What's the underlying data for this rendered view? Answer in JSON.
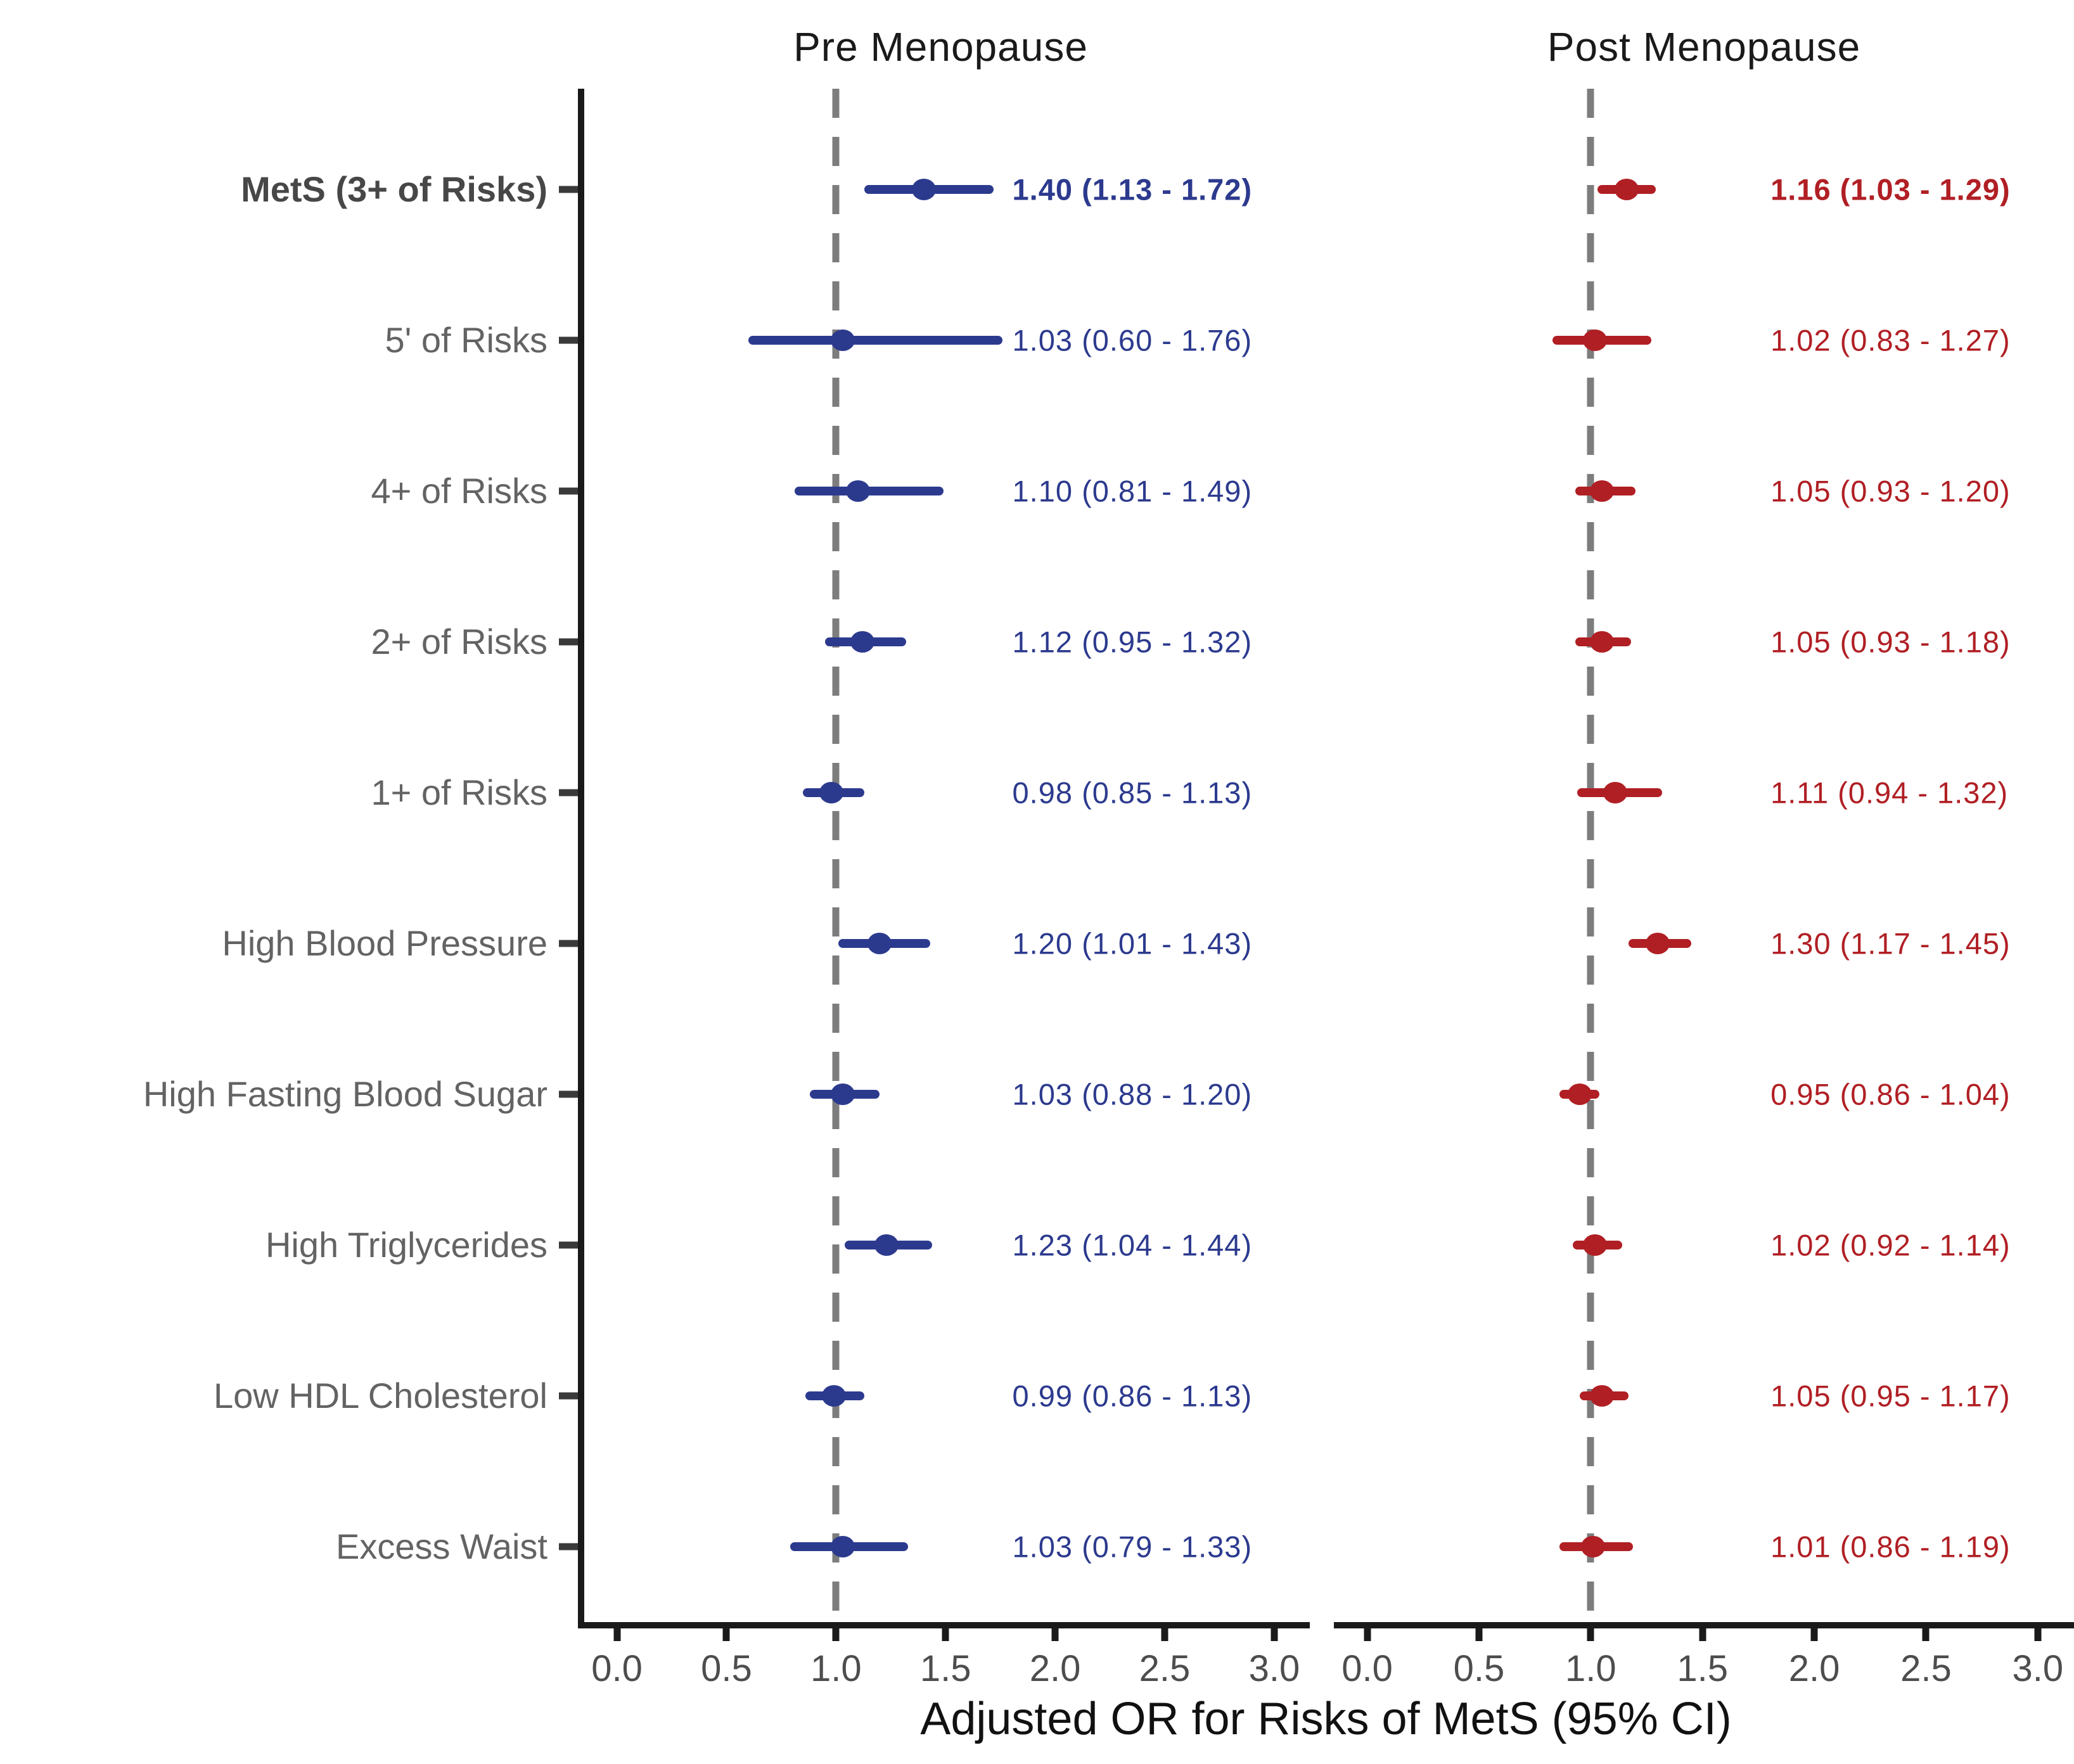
{
  "figure": {
    "x_axis_title": "Adjusted OR for Risks of MetS (95% CI)"
  },
  "chart_data": {
    "type": "forest",
    "orientation": "horizontal",
    "categories": [
      "MetS (3+ of Risks)",
      "5' of Risks",
      "4+ of Risks",
      "2+ of Risks",
      "1+ of Risks",
      "High Blood Pressure",
      "High Fasting Blood Sugar",
      "High Triglycerides",
      "Low HDL Cholesterol",
      "Excess Waist"
    ],
    "bold_rows": [
      0
    ],
    "x_ticks": [
      0.0,
      0.5,
      1.0,
      1.5,
      2.0,
      2.5,
      3.0
    ],
    "x_tick_labels": [
      "0.0",
      "0.5",
      "1.0",
      "1.5",
      "2.0",
      "2.5",
      "3.0"
    ],
    "xlim": [
      -0.15,
      3.15
    ],
    "reference_line": 1.0,
    "grid": false,
    "series": [
      {
        "name": "Pre Menopause",
        "color": "#2c3a8e",
        "values": [
          {
            "or": 1.4,
            "lo": 1.13,
            "hi": 1.72,
            "label": "1.40 (1.13 - 1.72)"
          },
          {
            "or": 1.03,
            "lo": 0.6,
            "hi": 1.76,
            "label": "1.03 (0.60 - 1.76)"
          },
          {
            "or": 1.1,
            "lo": 0.81,
            "hi": 1.49,
            "label": "1.10 (0.81 - 1.49)"
          },
          {
            "or": 1.12,
            "lo": 0.95,
            "hi": 1.32,
            "label": "1.12 (0.95 - 1.32)"
          },
          {
            "or": 0.98,
            "lo": 0.85,
            "hi": 1.13,
            "label": "0.98 (0.85 - 1.13)"
          },
          {
            "or": 1.2,
            "lo": 1.01,
            "hi": 1.43,
            "label": "1.20 (1.01 - 1.43)"
          },
          {
            "or": 1.03,
            "lo": 0.88,
            "hi": 1.2,
            "label": "1.03 (0.88 - 1.20)"
          },
          {
            "or": 1.23,
            "lo": 1.04,
            "hi": 1.44,
            "label": "1.23 (1.04 - 1.44)"
          },
          {
            "or": 0.99,
            "lo": 0.86,
            "hi": 1.13,
            "label": "0.99 (0.86 - 1.13)"
          },
          {
            "or": 1.03,
            "lo": 0.79,
            "hi": 1.33,
            "label": "1.03 (0.79 - 1.33)"
          }
        ]
      },
      {
        "name": "Post Menopause",
        "color": "#b01f24",
        "values": [
          {
            "or": 1.16,
            "lo": 1.03,
            "hi": 1.29,
            "label": "1.16 (1.03 - 1.29)"
          },
          {
            "or": 1.02,
            "lo": 0.83,
            "hi": 1.27,
            "label": "1.02 (0.83 - 1.27)"
          },
          {
            "or": 1.05,
            "lo": 0.93,
            "hi": 1.2,
            "label": "1.05 (0.93 - 1.20)"
          },
          {
            "or": 1.05,
            "lo": 0.93,
            "hi": 1.18,
            "label": "1.05 (0.93 - 1.18)"
          },
          {
            "or": 1.11,
            "lo": 0.94,
            "hi": 1.32,
            "label": "1.11 (0.94 - 1.32)"
          },
          {
            "or": 1.3,
            "lo": 1.17,
            "hi": 1.45,
            "label": "1.30 (1.17 - 1.45)"
          },
          {
            "or": 0.95,
            "lo": 0.86,
            "hi": 1.04,
            "label": "0.95 (0.86 - 1.04)"
          },
          {
            "or": 1.02,
            "lo": 0.92,
            "hi": 1.14,
            "label": "1.02 (0.92 - 1.14)"
          },
          {
            "or": 1.05,
            "lo": 0.95,
            "hi": 1.17,
            "label": "1.05 (0.95 - 1.17)"
          },
          {
            "or": 1.01,
            "lo": 0.86,
            "hi": 1.19,
            "label": "1.01 (0.86 - 1.19)"
          }
        ]
      }
    ]
  }
}
